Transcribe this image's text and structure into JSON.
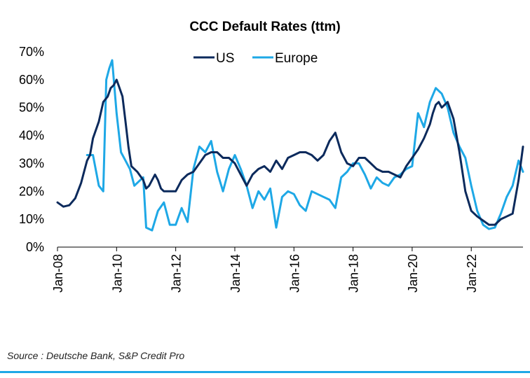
{
  "chart_data": {
    "type": "line",
    "title": "CCC Default Rates (ttm)",
    "xlabel": "",
    "ylabel": "",
    "ylim": [
      0,
      70
    ],
    "yticks": [
      0,
      10,
      20,
      30,
      40,
      50,
      60,
      70
    ],
    "ytick_labels": [
      "0%",
      "10%",
      "20%",
      "30%",
      "40%",
      "50%",
      "60%",
      "70%"
    ],
    "x_range_years": [
      2008.0,
      2023.75
    ],
    "xticks": [
      2008,
      2010,
      2012,
      2014,
      2016,
      2018,
      2020,
      2022
    ],
    "xtick_labels": [
      "Jan-08",
      "Jan-10",
      "Jan-12",
      "Jan-14",
      "Jan-16",
      "Jan-18",
      "Jan-20",
      "Jan-22"
    ],
    "legend": {
      "placement": "top-center"
    },
    "series": [
      {
        "name": "US",
        "color": "#0c2a5c",
        "x": [
          2008.0,
          2008.2,
          2008.4,
          2008.6,
          2008.8,
          2008.9,
          2009.0,
          2009.1,
          2009.2,
          2009.4,
          2009.55,
          2009.7,
          2009.8,
          2009.9,
          2010.0,
          2010.1,
          2010.2,
          2010.3,
          2010.4,
          2010.5,
          2010.7,
          2010.9,
          2011.0,
          2011.1,
          2011.2,
          2011.3,
          2011.4,
          2011.5,
          2011.6,
          2011.8,
          2012.0,
          2012.2,
          2012.4,
          2012.6,
          2012.8,
          2013.0,
          2013.2,
          2013.4,
          2013.6,
          2013.8,
          2014.0,
          2014.2,
          2014.4,
          2014.6,
          2014.8,
          2015.0,
          2015.2,
          2015.4,
          2015.6,
          2015.8,
          2016.0,
          2016.2,
          2016.4,
          2016.6,
          2016.8,
          2017.0,
          2017.2,
          2017.4,
          2017.6,
          2017.8,
          2018.0,
          2018.2,
          2018.4,
          2018.6,
          2018.8,
          2019.0,
          2019.2,
          2019.4,
          2019.6,
          2019.8,
          2020.0,
          2020.2,
          2020.4,
          2020.6,
          2020.7,
          2020.8,
          2020.9,
          2021.0,
          2021.1,
          2021.2,
          2021.4,
          2021.6,
          2021.8,
          2022.0,
          2022.2,
          2022.4,
          2022.6,
          2022.8,
          2023.0,
          2023.2,
          2023.4,
          2023.6,
          2023.75
        ],
        "values": [
          16,
          14.5,
          15,
          17.5,
          23,
          27,
          31,
          33,
          39,
          45,
          52,
          54,
          57,
          58,
          60,
          57,
          54,
          45,
          36,
          29,
          27,
          24,
          21,
          22,
          24,
          26,
          24,
          21,
          20,
          20,
          20,
          24,
          26,
          27,
          30,
          33,
          34,
          34,
          32,
          32,
          30,
          26,
          22,
          26,
          28,
          29,
          27,
          31,
          28,
          32,
          33,
          34,
          34,
          33,
          31,
          33,
          38,
          41,
          34,
          30,
          29,
          32,
          32,
          30,
          28,
          27,
          27,
          26,
          25,
          29,
          32,
          35,
          39,
          44,
          48,
          51,
          52,
          50,
          51,
          52,
          46,
          34,
          20,
          13,
          11,
          9.5,
          8,
          8,
          10,
          11,
          12,
          24,
          36
        ]
      },
      {
        "name": "Europe",
        "color": "#1ea8e6",
        "x": [
          2009.0,
          2009.2,
          2009.4,
          2009.55,
          2009.65,
          2009.75,
          2009.85,
          2010.0,
          2010.15,
          2010.3,
          2010.45,
          2010.6,
          2010.8,
          2010.9,
          2011.0,
          2011.2,
          2011.4,
          2011.6,
          2011.8,
          2012.0,
          2012.2,
          2012.4,
          2012.6,
          2012.8,
          2013.0,
          2013.2,
          2013.4,
          2013.6,
          2013.8,
          2014.0,
          2014.2,
          2014.4,
          2014.6,
          2014.8,
          2015.0,
          2015.2,
          2015.4,
          2015.6,
          2015.8,
          2016.0,
          2016.2,
          2016.4,
          2016.6,
          2016.8,
          2017.0,
          2017.2,
          2017.4,
          2017.6,
          2017.8,
          2018.0,
          2018.2,
          2018.4,
          2018.6,
          2018.8,
          2019.0,
          2019.2,
          2019.4,
          2019.6,
          2019.8,
          2020.0,
          2020.2,
          2020.4,
          2020.6,
          2020.8,
          2021.0,
          2021.2,
          2021.4,
          2021.6,
          2021.8,
          2022.0,
          2022.2,
          2022.4,
          2022.6,
          2022.8,
          2023.0,
          2023.2,
          2023.4,
          2023.6,
          2023.75
        ],
        "values": [
          33,
          33,
          22,
          20,
          60,
          64,
          67,
          48,
          34,
          31,
          28,
          22,
          24,
          25,
          7,
          6,
          13,
          16,
          8,
          8,
          14,
          9,
          28,
          36,
          34,
          38,
          27,
          20,
          28,
          33,
          28,
          22,
          14,
          20,
          17,
          21,
          7,
          18,
          20,
          19,
          15,
          13,
          20,
          19,
          18,
          17,
          14,
          25,
          27,
          30,
          30,
          26,
          21,
          25,
          23,
          22,
          25,
          26,
          28,
          29,
          48,
          43,
          52,
          57,
          55,
          50,
          41,
          36,
          32,
          22,
          13,
          8,
          6.5,
          7,
          12,
          18,
          22,
          31,
          27
        ]
      }
    ]
  },
  "source": "Source : Deutsche Bank, S&P Credit Pro",
  "colors": {
    "rule": "#1ea8e6",
    "axis": "#000000"
  }
}
